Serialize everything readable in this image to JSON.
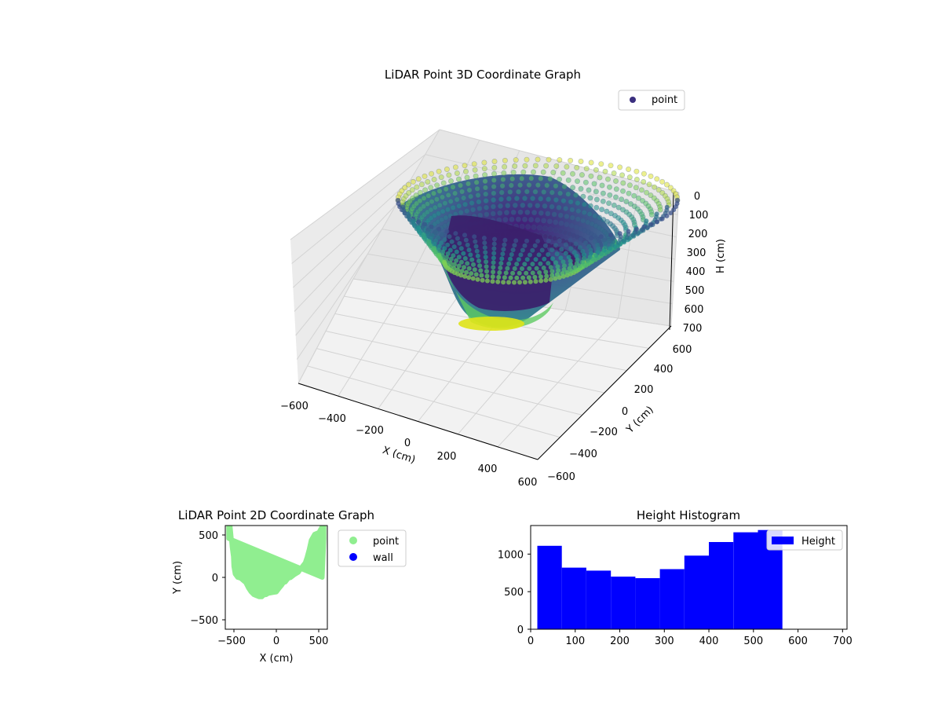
{
  "colors": {
    "viridis_dark": "#440154",
    "viridis_mid": "#21918c",
    "viridis_light": "#fde725",
    "legend_point_3d": "#3b2f7f",
    "point_2d": "#90ee90",
    "wall_2d": "#0000ff",
    "histogram": "#0000ff",
    "pane": "#f2f2f2",
    "grid": "#d3d3d3"
  },
  "chart_data": [
    {
      "type": "scatter",
      "projection": "3d",
      "title": "LiDAR Point 3D Coordinate Graph",
      "xlabel": "X (cm)",
      "ylabel": "Y (cm)",
      "zlabel": "H (cm)",
      "xlim": [
        -600,
        600
      ],
      "ylim": [
        -600,
        600
      ],
      "zlim": [
        0,
        700
      ],
      "z_inverted": true,
      "x_ticks": [
        "−600",
        "−400",
        "−200",
        "0",
        "200",
        "400",
        "600"
      ],
      "y_ticks": [
        "−600",
        "−400",
        "−200",
        "0",
        "200",
        "400",
        "600"
      ],
      "z_ticks": [
        "0",
        "100",
        "200",
        "300",
        "400",
        "500",
        "600",
        "700"
      ],
      "colormap": "viridis",
      "color_by": "height",
      "grid": true,
      "legend": {
        "placement": "upper right",
        "entries": [
          "point"
        ]
      },
      "series": [
        {
          "name": "point",
          "shape": "bowl of radial scan rings",
          "rim_radius": 600,
          "bottom_height": 700
        }
      ]
    },
    {
      "type": "scatter",
      "title": "LiDAR Point 2D Coordinate Graph",
      "xlabel": "X (cm)",
      "ylabel": "Y (cm)",
      "xlim": [
        -600,
        600
      ],
      "ylim": [
        -600,
        600
      ],
      "x_ticks": [
        "−500",
        "0",
        "500"
      ],
      "y_ticks": [
        "−500",
        "0",
        "500"
      ],
      "legend": {
        "placement": "outside right",
        "entries": [
          "point",
          "wall"
        ]
      },
      "series": [
        {
          "name": "point",
          "outline_x": [
            -560,
            -560,
            -545,
            -530,
            -520,
            -505,
            -500,
            -485,
            -455,
            -420,
            -385,
            -360,
            -330,
            -300,
            -265,
            -230,
            -200,
            -170,
            -150,
            -120,
            -95,
            -40,
            0,
            30,
            60,
            85,
            105,
            120,
            140,
            165,
            210,
            260,
            300,
            340,
            360,
            385,
            410,
            450,
            500,
            540,
            560,
            560,
            540
          ],
          "outline_y": [
            450,
            610,
            610,
            460,
            350,
            240,
            130,
            40,
            0,
            -10,
            -40,
            -60,
            -120,
            -165,
            -200,
            -215,
            -225,
            -225,
            -205,
            -200,
            -185,
            -175,
            -170,
            -130,
            -95,
            -60,
            -55,
            -35,
            -10,
            -5,
            30,
            60,
            120,
            170,
            230,
            320,
            430,
            500,
            520,
            590,
            610,
            450,
            0
          ]
        },
        {
          "name": "wall",
          "x": [],
          "y": []
        }
      ]
    },
    {
      "type": "bar",
      "subtype": "histogram",
      "title": "Height Histogram",
      "xlim": [
        0,
        710
      ],
      "ylim": [
        0,
        1380
      ],
      "x_ticks": [
        "0",
        "100",
        "200",
        "300",
        "400",
        "500",
        "600",
        "700"
      ],
      "y_ticks": [
        "0",
        "500",
        "1000"
      ],
      "legend": {
        "placement": "upper right",
        "entries": [
          "Height"
        ]
      },
      "series": [
        {
          "name": "Height",
          "bin_edges": [
            15,
            70,
            125,
            180,
            235,
            290,
            345,
            400,
            455,
            510,
            565
          ],
          "values": [
            1110,
            820,
            780,
            700,
            680,
            800,
            980,
            1160,
            1290,
            1320
          ]
        }
      ]
    }
  ]
}
